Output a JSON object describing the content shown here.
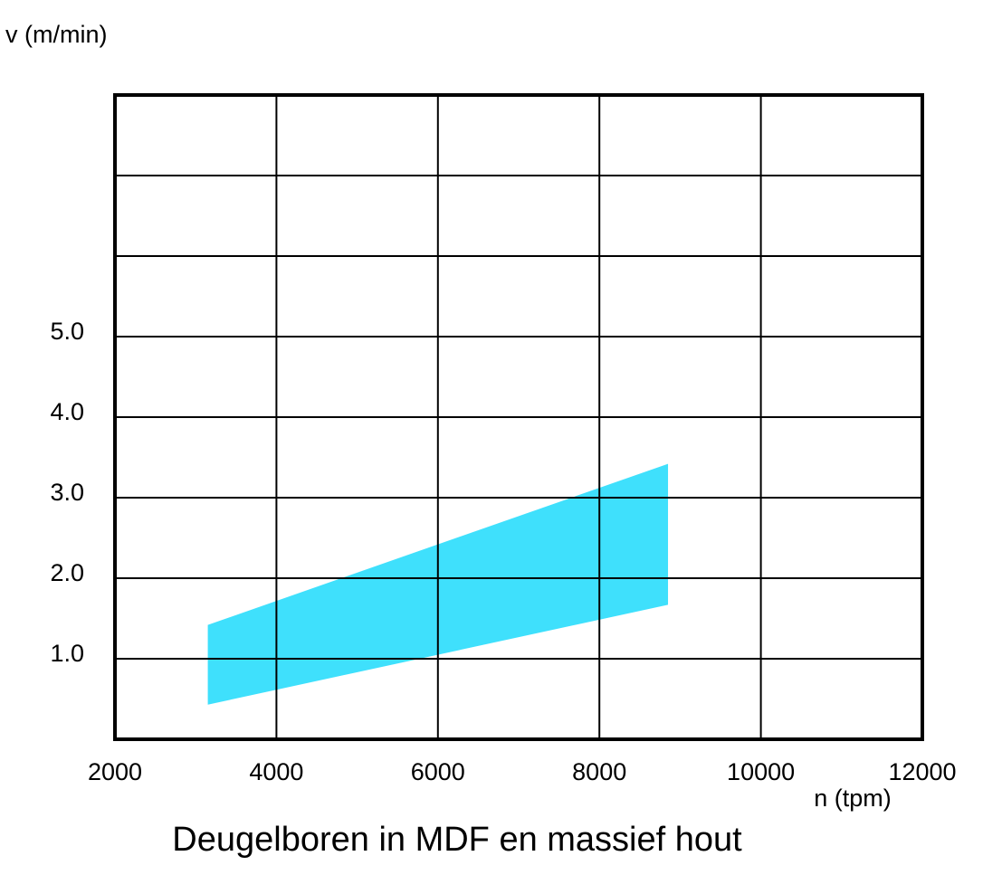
{
  "chart_data": {
    "type": "band",
    "title": "Deugelboren in MDF en massief hout",
    "y_label": "v (m/min)",
    "x_label": "n (tpm)",
    "x": [
      3150,
      8850
    ],
    "lower": [
      0.43,
      1.67
    ],
    "upper": [
      1.42,
      3.42
    ],
    "color": "#3fe0fc",
    "xlim": [
      2000,
      12000
    ],
    "xticks": [
      2000,
      4000,
      6000,
      8000,
      10000,
      12000
    ],
    "ylim": [
      0,
      8
    ],
    "yticks": [
      {
        "value": 1,
        "label": "1.0"
      },
      {
        "value": 2,
        "label": "2.0"
      },
      {
        "value": 3,
        "label": "3.0"
      },
      {
        "value": 4,
        "label": "4.0"
      },
      {
        "value": 5,
        "label": "5.0"
      },
      {
        "value": 6,
        "label": null
      },
      {
        "value": 7,
        "label": null
      }
    ],
    "grid": true
  }
}
